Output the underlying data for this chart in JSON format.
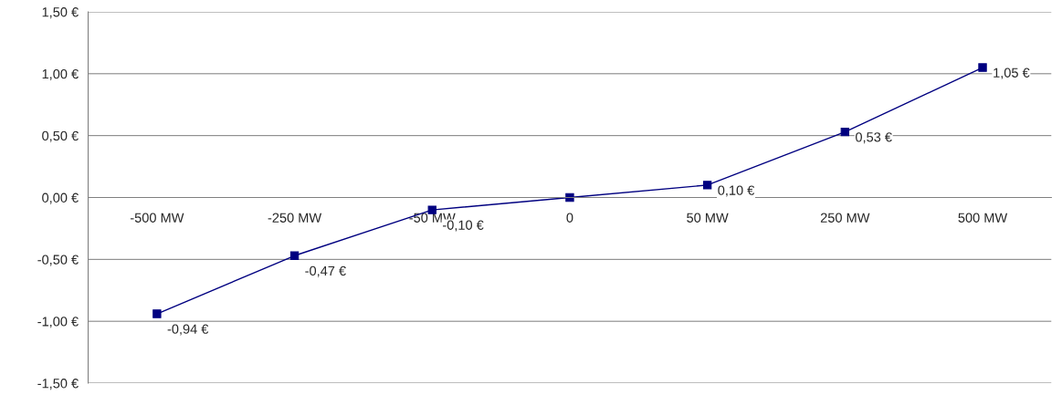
{
  "chart_data": {
    "type": "line",
    "categories": [
      "-500 MW",
      "-250 MW",
      "-50 MW",
      "0",
      "50 MW",
      "250 MW",
      "500 MW"
    ],
    "series": [
      {
        "color": "#000080",
        "values": [
          -0.94,
          -0.47,
          -0.1,
          0,
          0.1,
          0.53,
          1.05
        ],
        "value_labels": [
          "-0,94 €",
          "-0,47 €",
          "-0,10 €",
          null,
          "0,10 €",
          "0,53 €",
          "1,05 €"
        ]
      }
    ],
    "ylim": [
      -1.5,
      1.5
    ],
    "yticks": [
      {
        "value": -1.5,
        "label": "-1,50 €"
      },
      {
        "value": -1.0,
        "label": "-1,00 €"
      },
      {
        "value": -0.5,
        "label": "-0,50 €"
      },
      {
        "value": 0,
        "label": "0,00 €"
      },
      {
        "value": 0.5,
        "label": "0,50 €"
      },
      {
        "value": 1.0,
        "label": "1,00 €"
      },
      {
        "value": 1.5,
        "label": "1,50 €"
      }
    ],
    "grid": "y",
    "marker": "square",
    "line_style": "solid"
  }
}
